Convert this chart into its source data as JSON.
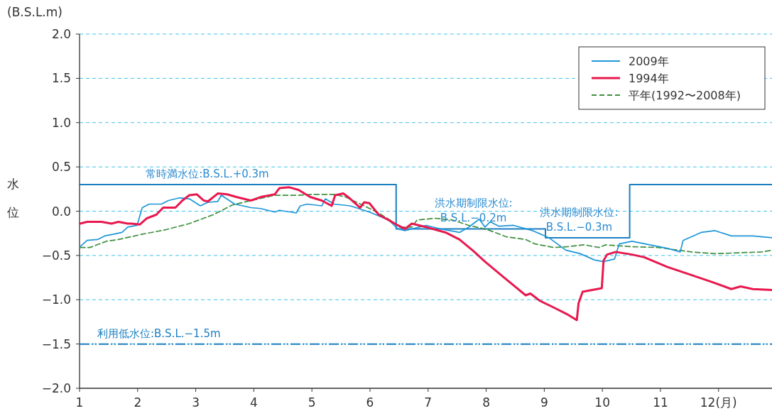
{
  "chart_data": {
    "type": "line",
    "ylabel": "水位",
    "xlim": [
      1,
      12.92
    ],
    "ylim": [
      -2,
      2
    ],
    "xticks": [
      1,
      2,
      3,
      4,
      5,
      6,
      7,
      8,
      9,
      10,
      11,
      {
        "value": 12,
        "label": "12(月)"
      }
    ],
    "yticks": [
      {
        "value": 2,
        "label": "2.0"
      },
      {
        "value": 1.5,
        "label": "1.5"
      },
      {
        "value": 1,
        "label": "1.0"
      },
      {
        "value": 0.5,
        "label": "0.5"
      },
      {
        "value": 0,
        "label": "0.0"
      },
      {
        "value": -0.5,
        "label": "−0.5"
      },
      {
        "value": -1,
        "label": "−1.0"
      },
      {
        "value": -1.5,
        "label": "−1.5"
      },
      {
        "value": -2,
        "label": "−2.0"
      }
    ],
    "grid": "y",
    "legend": "top right",
    "marker": "none",
    "series": [
      {
        "name": "2009年",
        "color": "#1e96d8",
        "line_style": "solid",
        "x": [
          1.01,
          1.13,
          1.31,
          1.43,
          1.59,
          1.73,
          1.83,
          1.99,
          2.08,
          2.2,
          2.41,
          2.53,
          2.72,
          2.89,
          3.08,
          3.21,
          3.38,
          3.44,
          3.67,
          3.95,
          4.12,
          4.36,
          4.44,
          4.73,
          4.8,
          4.92,
          5.17,
          5.23,
          5.38,
          5.66,
          5.99,
          6.32,
          6.48,
          6.6,
          6.97,
          7.21,
          7.54,
          7.7,
          7.88,
          7.98,
          8.07,
          8.22,
          8.47,
          8.8,
          9.08,
          9.37,
          9.62,
          9.86,
          10.02,
          10.21,
          10.29,
          10.51,
          11.12,
          11.34,
          11.39,
          11.7,
          11.94,
          12.22,
          12.59,
          12.92
        ],
        "values": [
          -0.4,
          -0.33,
          -0.32,
          -0.28,
          -0.26,
          -0.24,
          -0.18,
          -0.16,
          0.04,
          0.08,
          0.08,
          0.12,
          0.15,
          0.14,
          0.06,
          0.1,
          0.11,
          0.18,
          0.08,
          0.04,
          0.03,
          -0.01,
          0.01,
          -0.02,
          0.06,
          0.08,
          0.06,
          0.14,
          0.08,
          0.06,
          -0.01,
          -0.1,
          -0.2,
          -0.22,
          -0.16,
          -0.2,
          -0.24,
          -0.18,
          -0.09,
          -0.18,
          -0.12,
          -0.17,
          -0.16,
          -0.22,
          -0.3,
          -0.44,
          -0.48,
          -0.55,
          -0.57,
          -0.54,
          -0.37,
          -0.34,
          -0.42,
          -0.46,
          -0.33,
          -0.24,
          -0.22,
          -0.28,
          -0.28,
          -0.3
        ]
      },
      {
        "name": "1994年",
        "color": "#e8184e",
        "line_style": "solid",
        "x": [
          1.01,
          1.13,
          1.38,
          1.55,
          1.67,
          1.83,
          1.89,
          2.04,
          2.16,
          2.32,
          2.44,
          2.65,
          2.77,
          2.89,
          3.02,
          3.14,
          3.21,
          3.38,
          3.54,
          3.7,
          3.95,
          4.12,
          4.36,
          4.44,
          4.61,
          4.77,
          4.97,
          5.17,
          5.34,
          5.4,
          5.54,
          5.66,
          5.83,
          5.9,
          5.99,
          6.15,
          6.32,
          6.48,
          6.6,
          6.72,
          6.97,
          7.3,
          7.54,
          7.78,
          7.98,
          8.31,
          8.68,
          8.76,
          8.92,
          9.17,
          9.41,
          9.56,
          9.59,
          9.66,
          9.99,
          10.02,
          10.08,
          10.23,
          10.51,
          10.72,
          11.12,
          11.53,
          11.89,
          12.22,
          12.38,
          12.59,
          12.92
        ],
        "values": [
          -0.14,
          -0.12,
          -0.12,
          -0.14,
          -0.12,
          -0.14,
          -0.14,
          -0.15,
          -0.08,
          -0.04,
          0.04,
          0.04,
          0.12,
          0.18,
          0.19,
          0.12,
          0.11,
          0.2,
          0.19,
          0.16,
          0.12,
          0.16,
          0.19,
          0.26,
          0.27,
          0.24,
          0.16,
          0.12,
          0.06,
          0.18,
          0.2,
          0.14,
          0.04,
          0.1,
          0.09,
          -0.04,
          -0.1,
          -0.16,
          -0.2,
          -0.14,
          -0.18,
          -0.24,
          -0.32,
          -0.45,
          -0.57,
          -0.75,
          -0.95,
          -0.93,
          -1.01,
          -1.09,
          -1.17,
          -1.23,
          -1.04,
          -0.91,
          -0.87,
          -0.56,
          -0.49,
          -0.46,
          -0.49,
          -0.52,
          -0.63,
          -0.72,
          -0.8,
          -0.88,
          -0.85,
          -0.88,
          -0.89
        ]
      },
      {
        "name": "平年(1992〜2008年)",
        "color": "#3f8f3f",
        "line_style": "dashed",
        "x": [
          1.01,
          1.18,
          1.46,
          1.67,
          2.08,
          2.48,
          2.89,
          3.3,
          3.63,
          3.95,
          4.36,
          4.77,
          5.01,
          5.38,
          5.58,
          5.9,
          6.15,
          6.39,
          6.51,
          6.72,
          6.81,
          7.12,
          7.42,
          7.7,
          8.03,
          8.35,
          8.68,
          8.84,
          9.17,
          9.41,
          9.69,
          9.94,
          10.06,
          10.47,
          10.96,
          11.53,
          11.94,
          12.75,
          12.92
        ],
        "values": [
          -0.41,
          -0.41,
          -0.34,
          -0.32,
          -0.26,
          -0.21,
          -0.14,
          -0.04,
          0.07,
          0.12,
          0.18,
          0.18,
          0.19,
          0.19,
          0.16,
          0.06,
          -0.02,
          -0.12,
          -0.18,
          -0.18,
          -0.1,
          -0.08,
          -0.1,
          -0.16,
          -0.21,
          -0.29,
          -0.32,
          -0.37,
          -0.41,
          -0.4,
          -0.38,
          -0.41,
          -0.38,
          -0.4,
          -0.41,
          -0.46,
          -0.48,
          -0.46,
          -0.44
        ]
      },
      {
        "type": "step",
        "color": "#1a7fc1",
        "line_style": "solid",
        "x": [
          1,
          6.45,
          9.02,
          10.47,
          12.92
        ],
        "values": [
          0.3,
          -0.2,
          -0.3,
          0.3,
          0.3
        ]
      }
    ],
    "ref_lines": [
      {
        "axis": "y",
        "value": -1.5,
        "label": "利用低水位:B.S.L.−1.5m",
        "color": "#1a7fc1",
        "line_style": "dashdot"
      }
    ],
    "annotations": [
      "(B.S.L.m)",
      {
        "text": "常時満水位:B.S.L.+0.3m",
        "x": 3.2,
        "y": 0.3
      },
      {
        "text": "洪水期制限水位:\nB.S.L.−0.2m",
        "x": 7.78,
        "y": -0.2
      },
      {
        "text": "洪水期制限水位:\nB.S.L.−0.3m",
        "x": 9.6,
        "y": -0.3
      }
    ]
  }
}
